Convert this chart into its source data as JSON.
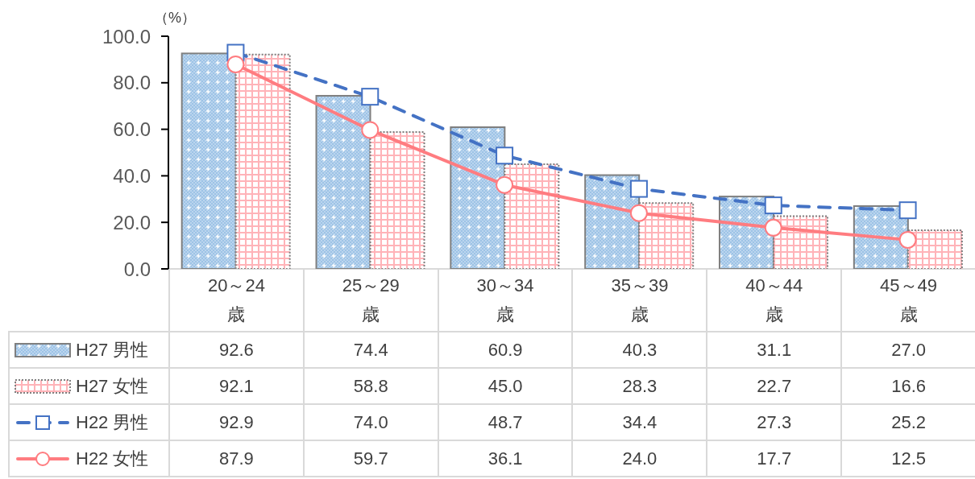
{
  "chart_data": {
    "type": "bar",
    "ylabel": "（%）",
    "categories": [
      "20～24\n歳",
      "25～29\n歳",
      "30～34\n歳",
      "35～39\n歳",
      "40～44\n歳",
      "45～49\n歳"
    ],
    "series": [
      {
        "name": "H27 男性",
        "color": "#9dc3e6",
        "values": [
          92.6,
          74.4,
          60.9,
          40.3,
          31.1,
          27.0
        ],
        "value_labels": [
          "92.6",
          "74.4",
          "60.9",
          "40.3",
          "31.1",
          "27.0"
        ]
      },
      {
        "name": "H27 女性",
        "color": "#ffb3b8",
        "values": [
          92.1,
          58.8,
          45.0,
          28.3,
          22.7,
          16.6
        ],
        "value_labels": [
          "92.1",
          "58.8",
          "45.0",
          "28.3",
          "22.7",
          "16.6"
        ]
      },
      {
        "name": "H22 男性",
        "type": "line",
        "color": "#4472c4",
        "line_style": "dashed",
        "marker": "square",
        "values": [
          92.9,
          74.0,
          48.7,
          34.4,
          27.3,
          25.2
        ],
        "value_labels": [
          "92.9",
          "74.0",
          "48.7",
          "34.4",
          "27.3",
          "25.2"
        ]
      },
      {
        "name": "H22 女性",
        "type": "line",
        "color": "#ff7c80",
        "line_style": "solid",
        "marker": "circle",
        "values": [
          87.9,
          59.7,
          36.1,
          24.0,
          17.7,
          12.5
        ],
        "value_labels": [
          "87.9",
          "59.7",
          "36.1",
          "24.0",
          "17.7",
          "12.5"
        ]
      }
    ],
    "ylim": [
      0,
      100
    ],
    "yticks": [
      {
        "value": 0,
        "label": "0.0"
      },
      {
        "value": 20,
        "label": "20.0"
      },
      {
        "value": 40,
        "label": "40.0"
      },
      {
        "value": 60,
        "label": "60.0"
      },
      {
        "value": 80,
        "label": "80.0"
      },
      {
        "value": 100,
        "label": "100.0"
      }
    ],
    "legend": "bottom"
  }
}
